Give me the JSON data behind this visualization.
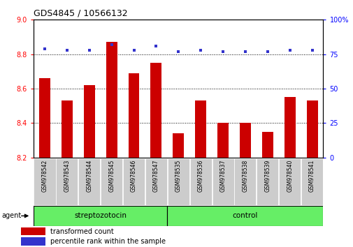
{
  "title": "GDS4845 / 10566132",
  "samples": [
    "GSM978542",
    "GSM978543",
    "GSM978544",
    "GSM978545",
    "GSM978546",
    "GSM978547",
    "GSM978535",
    "GSM978536",
    "GSM978537",
    "GSM978538",
    "GSM978539",
    "GSM978540",
    "GSM978541"
  ],
  "bar_values": [
    8.66,
    8.53,
    8.62,
    8.87,
    8.69,
    8.75,
    8.34,
    8.53,
    8.4,
    8.4,
    8.35,
    8.55,
    8.53
  ],
  "percentile_values": [
    79,
    78,
    78,
    82,
    78,
    81,
    77,
    78,
    77,
    77,
    77,
    78,
    78
  ],
  "ylim_left": [
    8.2,
    9.0
  ],
  "ylim_right": [
    0,
    100
  ],
  "right_ticks": [
    0,
    25,
    50,
    75,
    100
  ],
  "right_tick_labels": [
    "0",
    "25",
    "50",
    "75",
    "100%"
  ],
  "left_ticks": [
    8.2,
    8.4,
    8.6,
    8.8,
    9.0
  ],
  "bar_color": "#cc0000",
  "dot_color": "#3333cc",
  "group1_label": "streptozotocin",
  "group2_label": "control",
  "group1_count": 6,
  "group2_count": 7,
  "group_bg_color": "#66ee66",
  "agent_label": "agent",
  "legend_bar_label": "transformed count",
  "legend_dot_label": "percentile rank within the sample",
  "xlabel_bg_color": "#cccccc",
  "grid_color": "black"
}
